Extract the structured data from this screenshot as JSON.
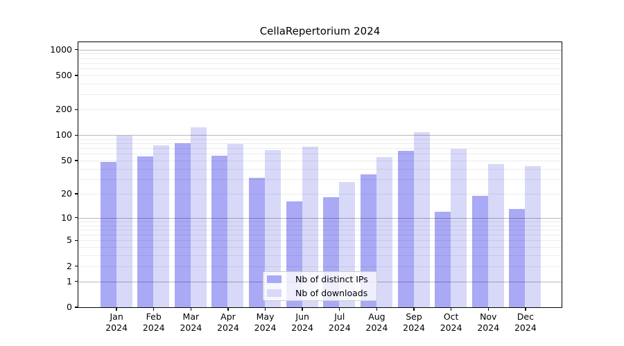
{
  "chart_data": {
    "type": "bar",
    "title": "CellaRepertorium 2024",
    "x_categories": [
      "Jan",
      "Feb",
      "Mar",
      "Apr",
      "May",
      "Jun",
      "Jul",
      "Aug",
      "Sep",
      "Oct",
      "Nov",
      "Dec"
    ],
    "x_sublabel": "2024",
    "series": [
      {
        "name": "Nb of distinct IPs",
        "color": "#a9a9f6",
        "values": [
          48,
          56,
          80,
          57,
          31,
          16,
          18,
          34,
          65,
          12,
          19,
          13
        ]
      },
      {
        "name": "Nb of downloads",
        "color": "#d8d8f9",
        "values": [
          99,
          76,
          123,
          79,
          66,
          73,
          28,
          55,
          108,
          69,
          46,
          43
        ]
      }
    ],
    "y_scale": "log10(1+x)",
    "y_ticks": [
      0,
      1,
      2,
      5,
      10,
      20,
      50,
      100,
      200,
      500,
      1000
    ],
    "ylim": [
      0,
      1220
    ],
    "xlabel": "",
    "ylabel": "",
    "grid": {
      "on": true,
      "major": [
        1,
        10,
        100,
        1000
      ],
      "minor": [
        2,
        3,
        4,
        5,
        6,
        7,
        8,
        9,
        20,
        30,
        40,
        50,
        60,
        70,
        80,
        90,
        200,
        300,
        400,
        500,
        600,
        700,
        800,
        900
      ]
    },
    "legend": {
      "position": "lower center",
      "entries": [
        "Nb of distinct IPs",
        "Nb of downloads"
      ]
    },
    "colors": {
      "background": "#ffffff",
      "axis": "#000000",
      "major_grid": "#b9b9b9",
      "minor_grid": "#ececec",
      "legend_border": "#cccccc"
    }
  }
}
